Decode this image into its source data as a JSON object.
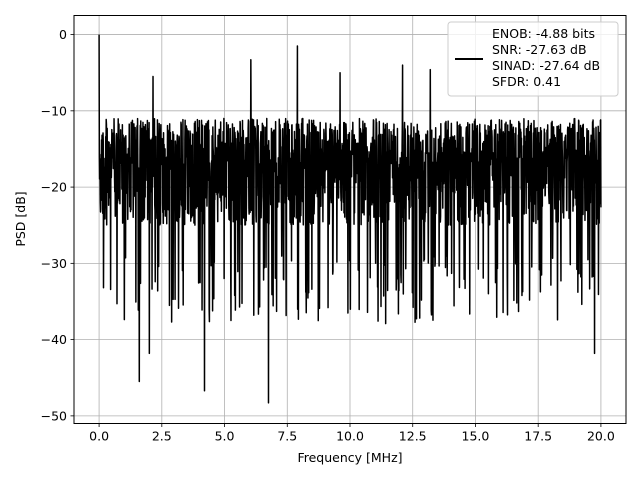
{
  "chart_data": {
    "type": "line",
    "title": "",
    "xlabel": "Frequency [MHz]",
    "ylabel": "PSD [dB]",
    "xlim": [
      -1.0,
      21.0
    ],
    "ylim": [
      -51.0,
      2.5
    ],
    "x_ticks": [
      0.0,
      2.5,
      5.0,
      7.5,
      10.0,
      12.5,
      15.0,
      17.5,
      20.0
    ],
    "x_tick_labels": [
      "0.0",
      "2.5",
      "5.0",
      "7.5",
      "10.0",
      "12.5",
      "15.0",
      "17.5",
      "20.0"
    ],
    "y_ticks": [
      0,
      -10,
      -20,
      -30,
      -40,
      -50
    ],
    "y_tick_labels": [
      "0",
      "−10",
      "−20",
      "−30",
      "−40",
      "−50"
    ],
    "grid": true,
    "legend_position": "top-right",
    "series": [
      {
        "name": "ENOB: -4.88 bits\nSNR: -27.63 dB\nSINAD: -27.64 dB\nSFDR: 0.41",
        "color": "#000000",
        "x_range": [
          0.0,
          20.0
        ],
        "num_points": 2048,
        "values_summary": {
          "peak_value": 0.0,
          "peak_frequency": 0.0,
          "typical_upper_envelope": -10,
          "typical_lower_envelope": -27,
          "max_spurs": [
            {
              "x": 2.15,
              "y": -5.5
            },
            {
              "x": 6.05,
              "y": -3.3
            },
            {
              "x": 7.9,
              "y": -1.5
            },
            {
              "x": 9.6,
              "y": -5.0
            },
            {
              "x": 12.1,
              "y": -4.0
            },
            {
              "x": 13.2,
              "y": -4.6
            }
          ],
          "min_dips": [
            {
              "x": 1.6,
              "y": -45.5
            },
            {
              "x": 2.0,
              "y": -41.8
            },
            {
              "x": 4.2,
              "y": -46.7
            },
            {
              "x": 6.75,
              "y": -48.3
            },
            {
              "x": 19.75,
              "y": -41.8
            }
          ]
        }
      }
    ]
  }
}
